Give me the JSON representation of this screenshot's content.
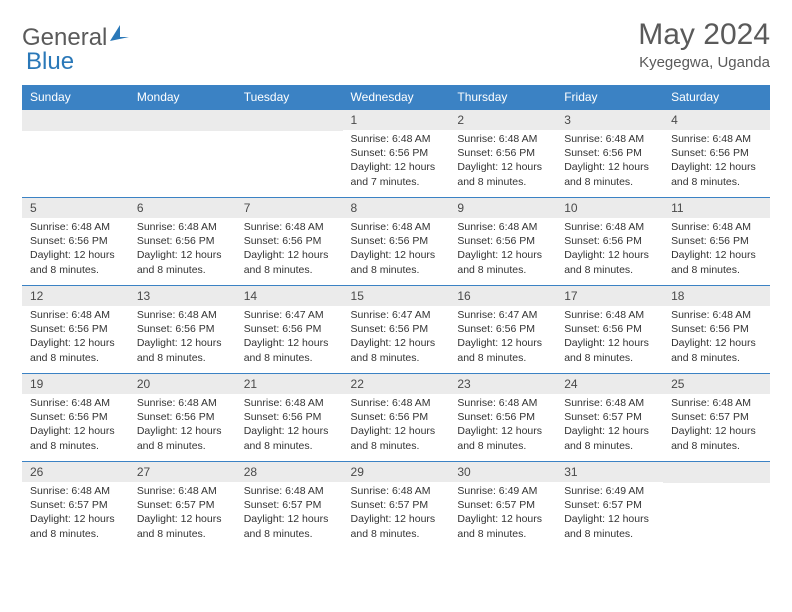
{
  "logo": {
    "text1": "General",
    "text2": "Blue"
  },
  "title": "May 2024",
  "location": "Kyegegwa, Uganda",
  "colors": {
    "header_bg": "#3b82c4",
    "border": "#3b82c4",
    "daynum_bg": "#ebebeb",
    "text": "#333333",
    "title_text": "#5a5a5a"
  },
  "day_names": [
    "Sunday",
    "Monday",
    "Tuesday",
    "Wednesday",
    "Thursday",
    "Friday",
    "Saturday"
  ],
  "weeks": [
    [
      null,
      null,
      null,
      {
        "n": "1",
        "sr": "6:48 AM",
        "ss": "6:56 PM",
        "dl": "12 hours and 7 minutes."
      },
      {
        "n": "2",
        "sr": "6:48 AM",
        "ss": "6:56 PM",
        "dl": "12 hours and 8 minutes."
      },
      {
        "n": "3",
        "sr": "6:48 AM",
        "ss": "6:56 PM",
        "dl": "12 hours and 8 minutes."
      },
      {
        "n": "4",
        "sr": "6:48 AM",
        "ss": "6:56 PM",
        "dl": "12 hours and 8 minutes."
      }
    ],
    [
      {
        "n": "5",
        "sr": "6:48 AM",
        "ss": "6:56 PM",
        "dl": "12 hours and 8 minutes."
      },
      {
        "n": "6",
        "sr": "6:48 AM",
        "ss": "6:56 PM",
        "dl": "12 hours and 8 minutes."
      },
      {
        "n": "7",
        "sr": "6:48 AM",
        "ss": "6:56 PM",
        "dl": "12 hours and 8 minutes."
      },
      {
        "n": "8",
        "sr": "6:48 AM",
        "ss": "6:56 PM",
        "dl": "12 hours and 8 minutes."
      },
      {
        "n": "9",
        "sr": "6:48 AM",
        "ss": "6:56 PM",
        "dl": "12 hours and 8 minutes."
      },
      {
        "n": "10",
        "sr": "6:48 AM",
        "ss": "6:56 PM",
        "dl": "12 hours and 8 minutes."
      },
      {
        "n": "11",
        "sr": "6:48 AM",
        "ss": "6:56 PM",
        "dl": "12 hours and 8 minutes."
      }
    ],
    [
      {
        "n": "12",
        "sr": "6:48 AM",
        "ss": "6:56 PM",
        "dl": "12 hours and 8 minutes."
      },
      {
        "n": "13",
        "sr": "6:48 AM",
        "ss": "6:56 PM",
        "dl": "12 hours and 8 minutes."
      },
      {
        "n": "14",
        "sr": "6:47 AM",
        "ss": "6:56 PM",
        "dl": "12 hours and 8 minutes."
      },
      {
        "n": "15",
        "sr": "6:47 AM",
        "ss": "6:56 PM",
        "dl": "12 hours and 8 minutes."
      },
      {
        "n": "16",
        "sr": "6:47 AM",
        "ss": "6:56 PM",
        "dl": "12 hours and 8 minutes."
      },
      {
        "n": "17",
        "sr": "6:48 AM",
        "ss": "6:56 PM",
        "dl": "12 hours and 8 minutes."
      },
      {
        "n": "18",
        "sr": "6:48 AM",
        "ss": "6:56 PM",
        "dl": "12 hours and 8 minutes."
      }
    ],
    [
      {
        "n": "19",
        "sr": "6:48 AM",
        "ss": "6:56 PM",
        "dl": "12 hours and 8 minutes."
      },
      {
        "n": "20",
        "sr": "6:48 AM",
        "ss": "6:56 PM",
        "dl": "12 hours and 8 minutes."
      },
      {
        "n": "21",
        "sr": "6:48 AM",
        "ss": "6:56 PM",
        "dl": "12 hours and 8 minutes."
      },
      {
        "n": "22",
        "sr": "6:48 AM",
        "ss": "6:56 PM",
        "dl": "12 hours and 8 minutes."
      },
      {
        "n": "23",
        "sr": "6:48 AM",
        "ss": "6:56 PM",
        "dl": "12 hours and 8 minutes."
      },
      {
        "n": "24",
        "sr": "6:48 AM",
        "ss": "6:57 PM",
        "dl": "12 hours and 8 minutes."
      },
      {
        "n": "25",
        "sr": "6:48 AM",
        "ss": "6:57 PM",
        "dl": "12 hours and 8 minutes."
      }
    ],
    [
      {
        "n": "26",
        "sr": "6:48 AM",
        "ss": "6:57 PM",
        "dl": "12 hours and 8 minutes."
      },
      {
        "n": "27",
        "sr": "6:48 AM",
        "ss": "6:57 PM",
        "dl": "12 hours and 8 minutes."
      },
      {
        "n": "28",
        "sr": "6:48 AM",
        "ss": "6:57 PM",
        "dl": "12 hours and 8 minutes."
      },
      {
        "n": "29",
        "sr": "6:48 AM",
        "ss": "6:57 PM",
        "dl": "12 hours and 8 minutes."
      },
      {
        "n": "30",
        "sr": "6:49 AM",
        "ss": "6:57 PM",
        "dl": "12 hours and 8 minutes."
      },
      {
        "n": "31",
        "sr": "6:49 AM",
        "ss": "6:57 PM",
        "dl": "12 hours and 8 minutes."
      },
      null
    ]
  ],
  "labels": {
    "sunrise": "Sunrise:",
    "sunset": "Sunset:",
    "daylight": "Daylight:"
  }
}
